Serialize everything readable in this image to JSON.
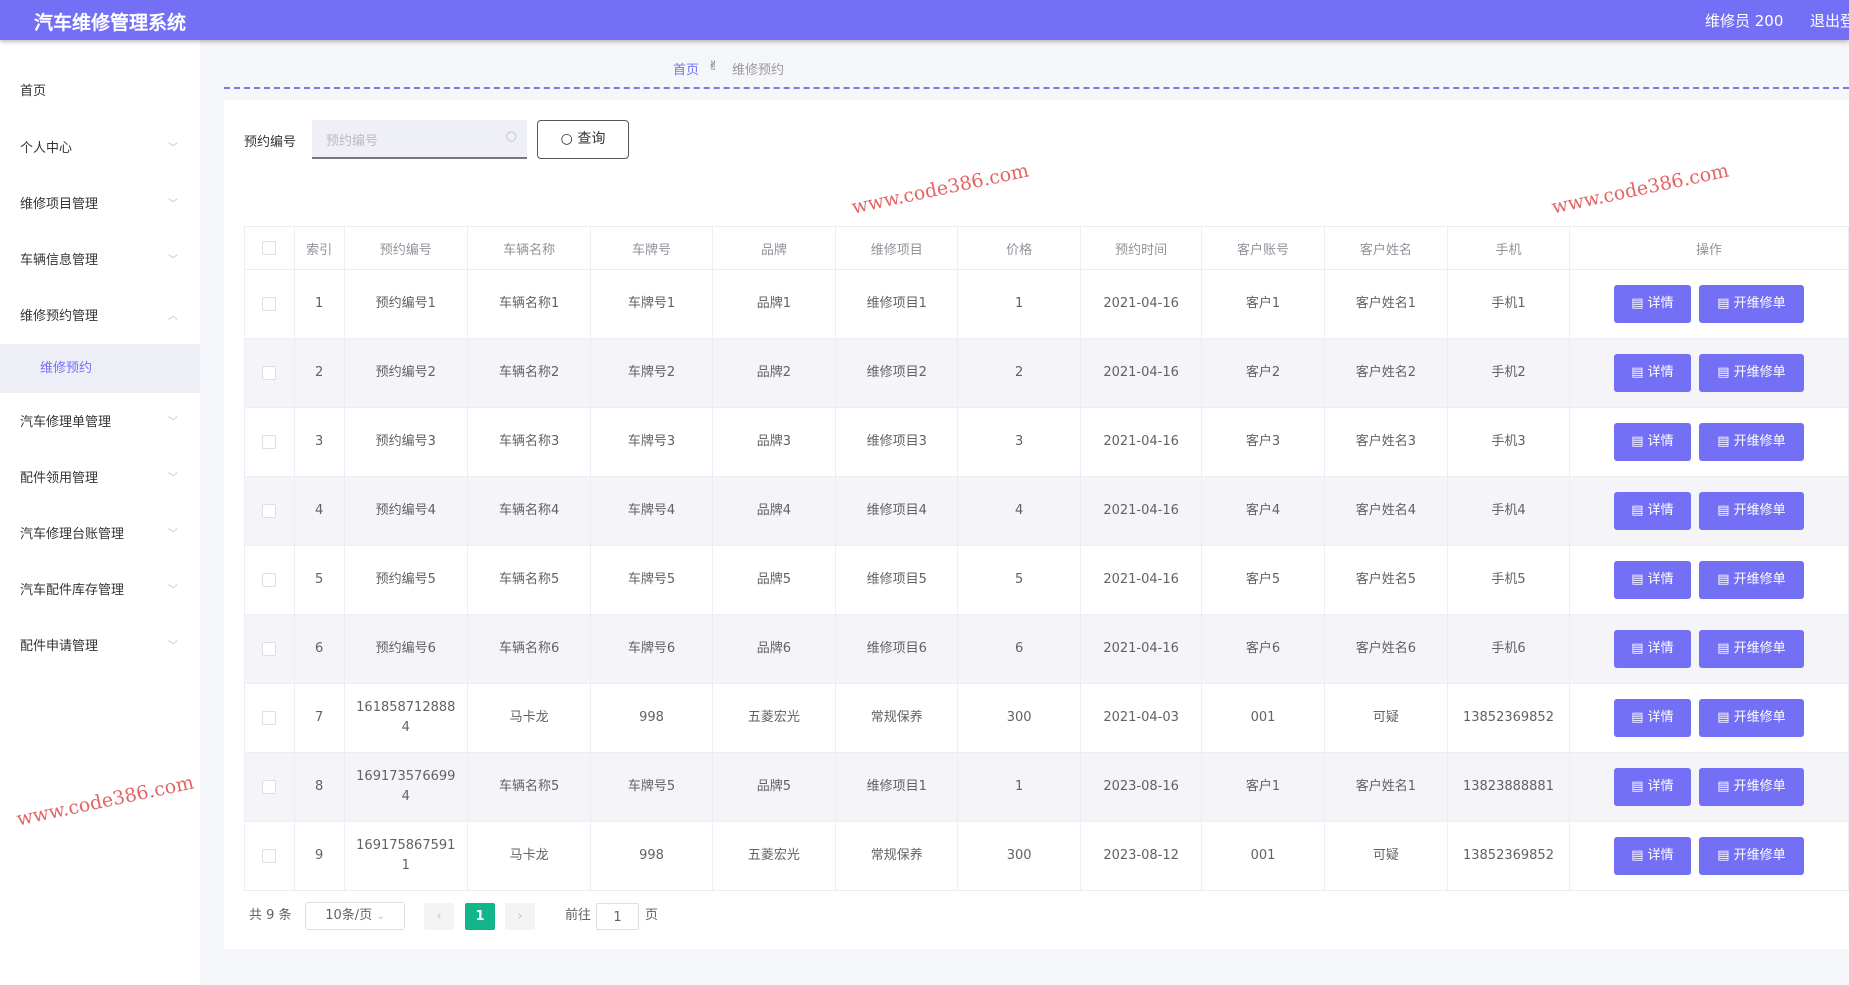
{
  "header": {
    "title": "汽车维修管理系统",
    "user": "维修员 200",
    "logout": "退出登录"
  },
  "sidebar": {
    "items": [
      {
        "label": "首页",
        "chev": false
      },
      {
        "label": "个人中心",
        "chev": true
      },
      {
        "label": "维修项目管理",
        "chev": true
      },
      {
        "label": "车辆信息管理",
        "chev": true
      },
      {
        "label": "维修预约管理",
        "chev": true,
        "open": true
      },
      {
        "label": "维修预约",
        "sub": true
      },
      {
        "label": "汽车修理单管理",
        "chev": true
      },
      {
        "label": "配件领用管理",
        "chev": true
      },
      {
        "label": "汽车修理台账管理",
        "chev": true
      },
      {
        "label": "汽车配件库存管理",
        "chev": true
      },
      {
        "label": "配件申请管理",
        "chev": true
      }
    ]
  },
  "breadcrumb": {
    "home": "首页",
    "current": "维修预约"
  },
  "search": {
    "label": "预约编号",
    "placeholder": "预约编号",
    "button": "查询"
  },
  "table": {
    "headers": [
      "索引",
      "预约编号",
      "车辆名称",
      "车牌号",
      "品牌",
      "维修项目",
      "价格",
      "预约时间",
      "客户账号",
      "客户姓名",
      "手机",
      "操作"
    ],
    "rows": [
      [
        "1",
        "预约编号1",
        "车辆名称1",
        "车牌号1",
        "品牌1",
        "维修项目1",
        "1",
        "2021-04-16",
        "客户1",
        "客户姓名1",
        "手机1"
      ],
      [
        "2",
        "预约编号2",
        "车辆名称2",
        "车牌号2",
        "品牌2",
        "维修项目2",
        "2",
        "2021-04-16",
        "客户2",
        "客户姓名2",
        "手机2"
      ],
      [
        "3",
        "预约编号3",
        "车辆名称3",
        "车牌号3",
        "品牌3",
        "维修项目3",
        "3",
        "2021-04-16",
        "客户3",
        "客户姓名3",
        "手机3"
      ],
      [
        "4",
        "预约编号4",
        "车辆名称4",
        "车牌号4",
        "品牌4",
        "维修项目4",
        "4",
        "2021-04-16",
        "客户4",
        "客户姓名4",
        "手机4"
      ],
      [
        "5",
        "预约编号5",
        "车辆名称5",
        "车牌号5",
        "品牌5",
        "维修项目5",
        "5",
        "2021-04-16",
        "客户5",
        "客户姓名5",
        "手机5"
      ],
      [
        "6",
        "预约编号6",
        "车辆名称6",
        "车牌号6",
        "品牌6",
        "维修项目6",
        "6",
        "2021-04-16",
        "客户6",
        "客户姓名6",
        "手机6"
      ],
      [
        "7",
        "1618587128884",
        "马卡龙",
        "998",
        "五菱宏光",
        "常规保养",
        "300",
        "2021-04-03",
        "001",
        "可疑",
        "13852369852"
      ],
      [
        "8",
        "1691735766994",
        "车辆名称5",
        "车牌号5",
        "品牌5",
        "维修项目1",
        "1",
        "2023-08-16",
        "客户1",
        "客户姓名1",
        "13823888881"
      ],
      [
        "9",
        "1691758675911",
        "马卡龙",
        "998",
        "五菱宏光",
        "常规保养",
        "300",
        "2023-08-12",
        "001",
        "可疑",
        "13852369852"
      ]
    ],
    "detail_label": "详情",
    "order_label": "开维修单"
  },
  "pagination": {
    "total": "共 9 条",
    "page_size": "10条/页",
    "current_page": "1",
    "goto_label": "前往",
    "goto_value": "1",
    "page_suffix": "页"
  },
  "watermark": "www.code386.com",
  "colors": {
    "primary": "#7470f5",
    "page_active": "#13b58a"
  }
}
